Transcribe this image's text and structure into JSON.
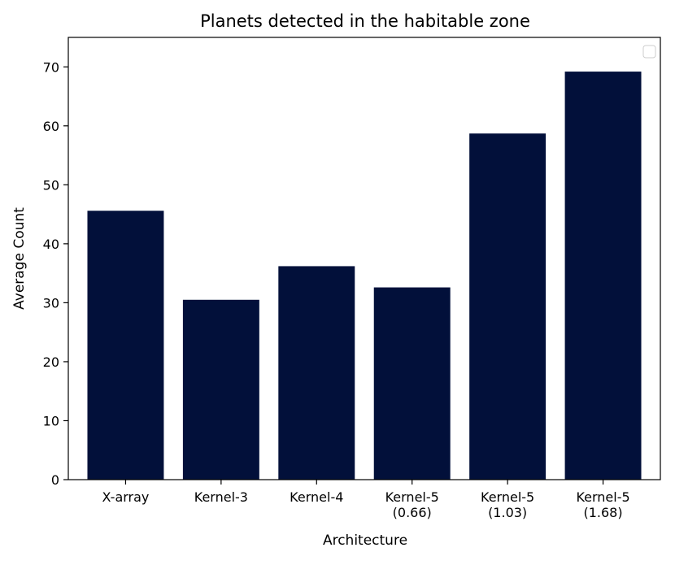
{
  "chart_data": {
    "type": "bar",
    "title": "Planets detected in the habitable zone",
    "xlabel": "Architecture",
    "ylabel": "Average Count",
    "categories": [
      [
        "X-array"
      ],
      [
        "Kernel-3"
      ],
      [
        "Kernel-4"
      ],
      [
        "Kernel-5",
        "(0.66)"
      ],
      [
        "Kernel-5",
        "(1.03)"
      ],
      [
        "Kernel-5",
        "(1.68)"
      ]
    ],
    "values": [
      45.6,
      30.5,
      36.2,
      32.6,
      58.7,
      69.2
    ],
    "ylim": [
      0,
      75
    ],
    "yticks": [
      0,
      10,
      20,
      30,
      40,
      50,
      60,
      70
    ],
    "grid": false,
    "legend": {
      "placement": "top-right",
      "entries": []
    },
    "colors": {
      "bar": "#02103a",
      "axis": "#000000",
      "legend_border": "#cccccc"
    }
  }
}
